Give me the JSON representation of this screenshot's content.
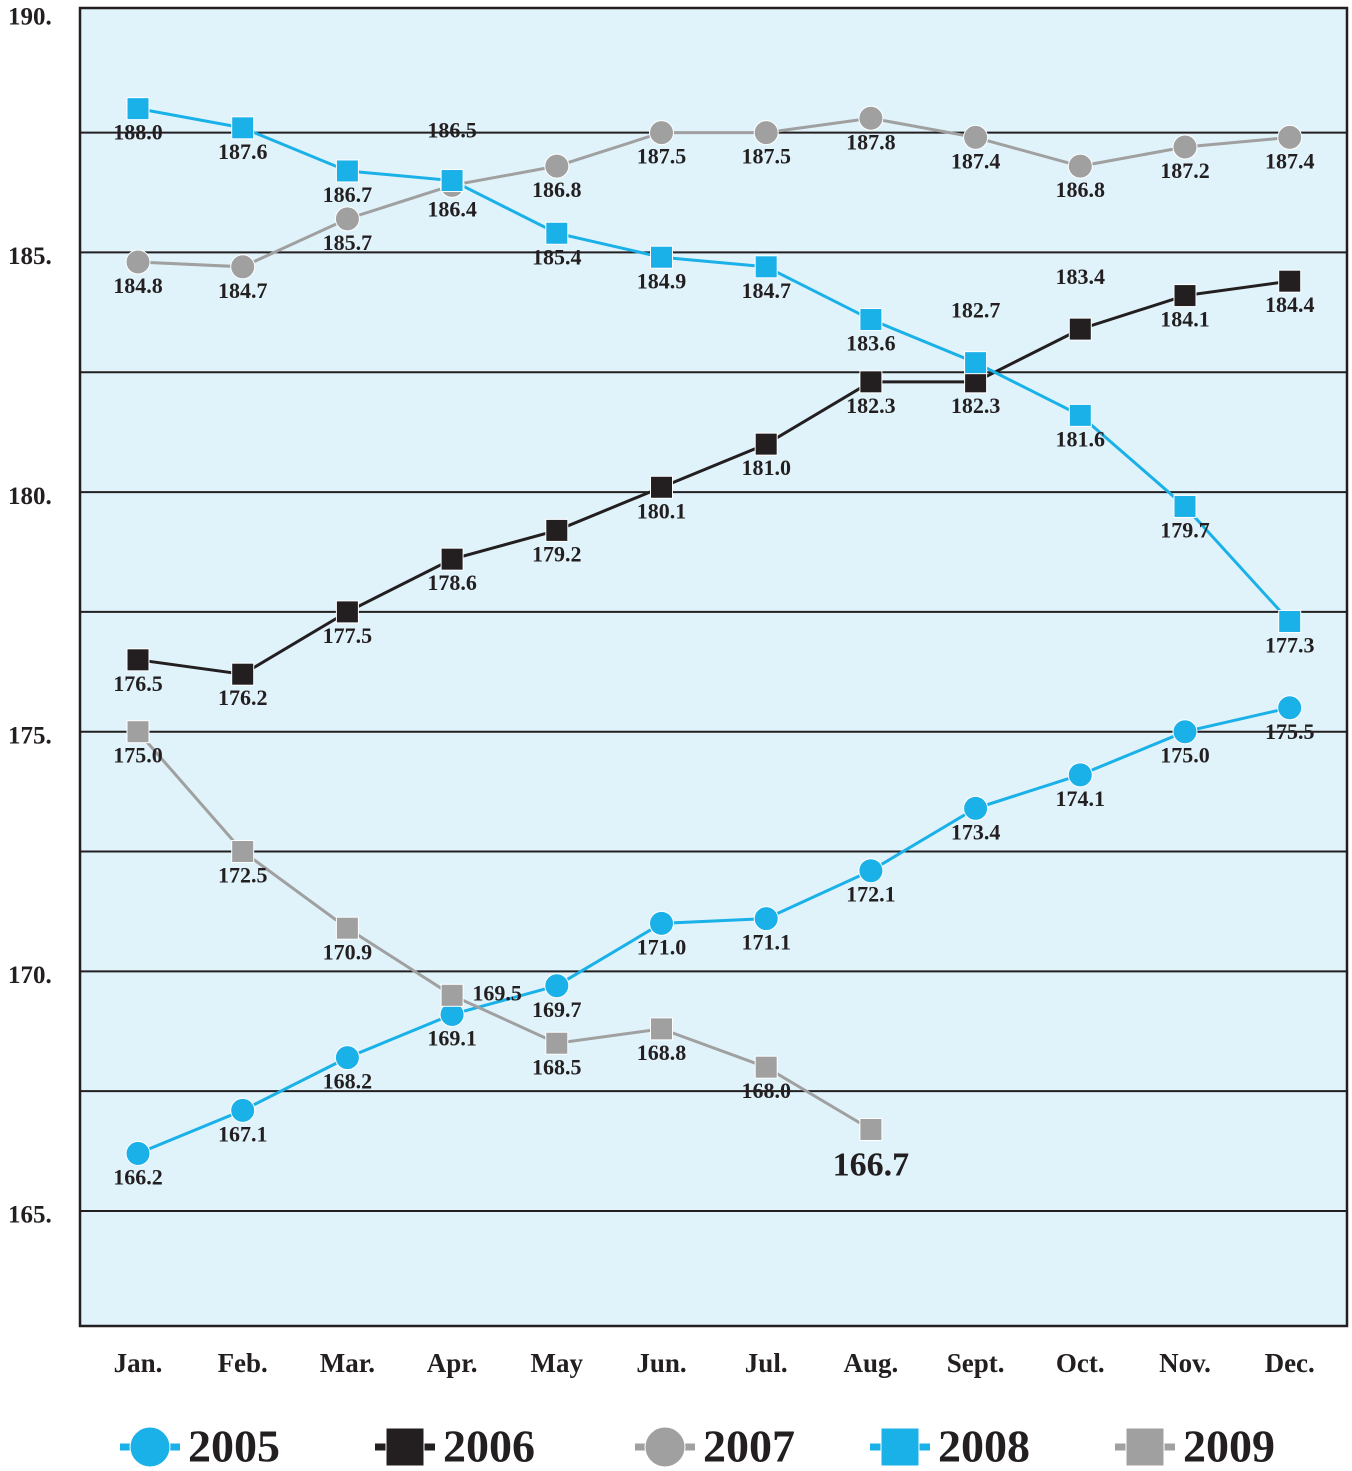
{
  "chart_data": {
    "type": "line",
    "categories": [
      "Jan.",
      "Feb.",
      "Mar.",
      "Apr.",
      "May",
      "Jun.",
      "Jul.",
      "Aug.",
      "Sept.",
      "Oct.",
      "Nov.",
      "Dec."
    ],
    "series": [
      {
        "name": "2005",
        "color": "#1ab0e8",
        "marker": "circle",
        "values": [
          166.2,
          167.1,
          168.2,
          169.1,
          169.7,
          171.0,
          171.1,
          172.1,
          173.4,
          174.1,
          175.0,
          175.5
        ],
        "value_labels": [
          "166.2",
          "167.1",
          "168.2",
          "169.1",
          "169.7",
          "171.0",
          "171.1",
          "172.1",
          "173.4",
          "174.1",
          "175.0",
          "175.5"
        ]
      },
      {
        "name": "2006",
        "color": "#231f20",
        "marker": "square",
        "values": [
          176.5,
          176.2,
          177.5,
          178.6,
          179.2,
          180.1,
          181.0,
          182.3,
          182.3,
          183.4,
          184.1,
          184.4
        ],
        "value_labels": [
          "176.5",
          "176.2",
          "177.5",
          "178.6",
          "179.2",
          "180.1",
          "181.0",
          "182.3",
          "182.3",
          "183.4",
          "184.1",
          "184.4"
        ]
      },
      {
        "name": "2007",
        "color": "#a0a0a0",
        "marker": "circle",
        "values": [
          184.8,
          184.7,
          185.7,
          186.4,
          186.8,
          187.5,
          187.5,
          187.8,
          187.4,
          186.8,
          187.2,
          187.4
        ],
        "value_labels": [
          "184.8",
          "184.7",
          "185.7",
          "186.4",
          "186.8",
          "187.5",
          "187.5",
          "187.8",
          "187.4",
          "186.8",
          "187.2",
          "187.4"
        ]
      },
      {
        "name": "2008",
        "color": "#1ab0e8",
        "marker": "square",
        "values": [
          188.0,
          187.6,
          186.7,
          186.5,
          185.4,
          184.9,
          184.7,
          183.6,
          182.7,
          181.6,
          179.7,
          177.3
        ],
        "value_labels": [
          "188.0",
          "187.6",
          "186.7",
          "186.5",
          "185.4",
          "184.9",
          "184.7",
          "183.6",
          "182.7",
          "181.6",
          "179.7",
          "177.3"
        ]
      },
      {
        "name": "2009",
        "color": "#a0a0a0",
        "marker": "square",
        "values": [
          175.0,
          172.5,
          170.9,
          169.5,
          168.5,
          168.8,
          168.0,
          166.7,
          null,
          null,
          null,
          null
        ],
        "value_labels": [
          "175.0",
          "172.5",
          "170.9",
          "169.5",
          "168.5",
          "168.8",
          "168.0",
          "166.7",
          null,
          null,
          null,
          null
        ]
      }
    ],
    "ylim": [
      162.6,
      190.1
    ],
    "yticks": [
      {
        "value": 165,
        "label": "165."
      },
      {
        "value": 170,
        "label": "170."
      },
      {
        "value": 175,
        "label": "175."
      },
      {
        "value": 180,
        "label": "180."
      },
      {
        "value": 185,
        "label": "185."
      },
      {
        "value": 190,
        "label": "190."
      }
    ],
    "minor_yticks": [
      167.5,
      172.5,
      177.5,
      182.5,
      187.5
    ],
    "grid": true,
    "background": "#e0f3fb",
    "legend": "bottom"
  }
}
